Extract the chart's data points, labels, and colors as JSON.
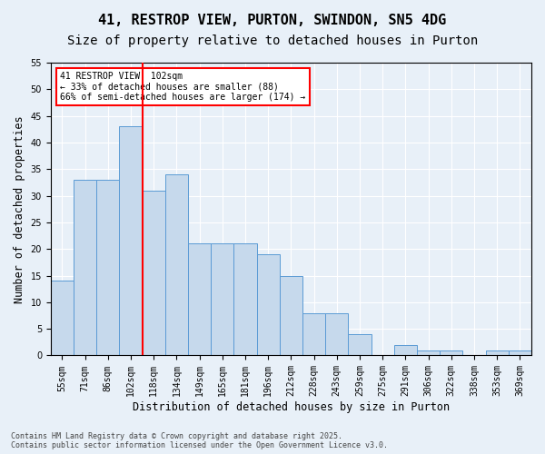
{
  "title1": "41, RESTROP VIEW, PURTON, SWINDON, SN5 4DG",
  "title2": "Size of property relative to detached houses in Purton",
  "xlabel": "Distribution of detached houses by size in Purton",
  "ylabel": "Number of detached properties",
  "categories": [
    "55sqm",
    "71sqm",
    "86sqm",
    "102sqm",
    "118sqm",
    "134sqm",
    "149sqm",
    "165sqm",
    "181sqm",
    "196sqm",
    "212sqm",
    "228sqm",
    "243sqm",
    "259sqm",
    "275sqm",
    "291sqm",
    "306sqm",
    "322sqm",
    "338sqm",
    "353sqm",
    "369sqm"
  ],
  "values": [
    14,
    33,
    33,
    43,
    31,
    34,
    21,
    21,
    21,
    19,
    15,
    8,
    8,
    4,
    0,
    2,
    1,
    1,
    0,
    1,
    1
  ],
  "bar_color": "#c6d9ec",
  "bar_edge_color": "#5b9bd5",
  "vline_x": 3,
  "vline_color": "red",
  "ylim": [
    0,
    55
  ],
  "yticks": [
    0,
    5,
    10,
    15,
    20,
    25,
    30,
    35,
    40,
    45,
    50,
    55
  ],
  "annotation_text": "41 RESTROP VIEW: 102sqm\n← 33% of detached houses are smaller (88)\n66% of semi-detached houses are larger (174) →",
  "annotation_box_color": "white",
  "annotation_box_edge": "red",
  "bg_color": "#e8f0f8",
  "footer": "Contains HM Land Registry data © Crown copyright and database right 2025.\nContains public sector information licensed under the Open Government Licence v3.0.",
  "title_fontsize": 11,
  "subtitle_fontsize": 10,
  "tick_fontsize": 7,
  "axis_label_fontsize": 8.5
}
